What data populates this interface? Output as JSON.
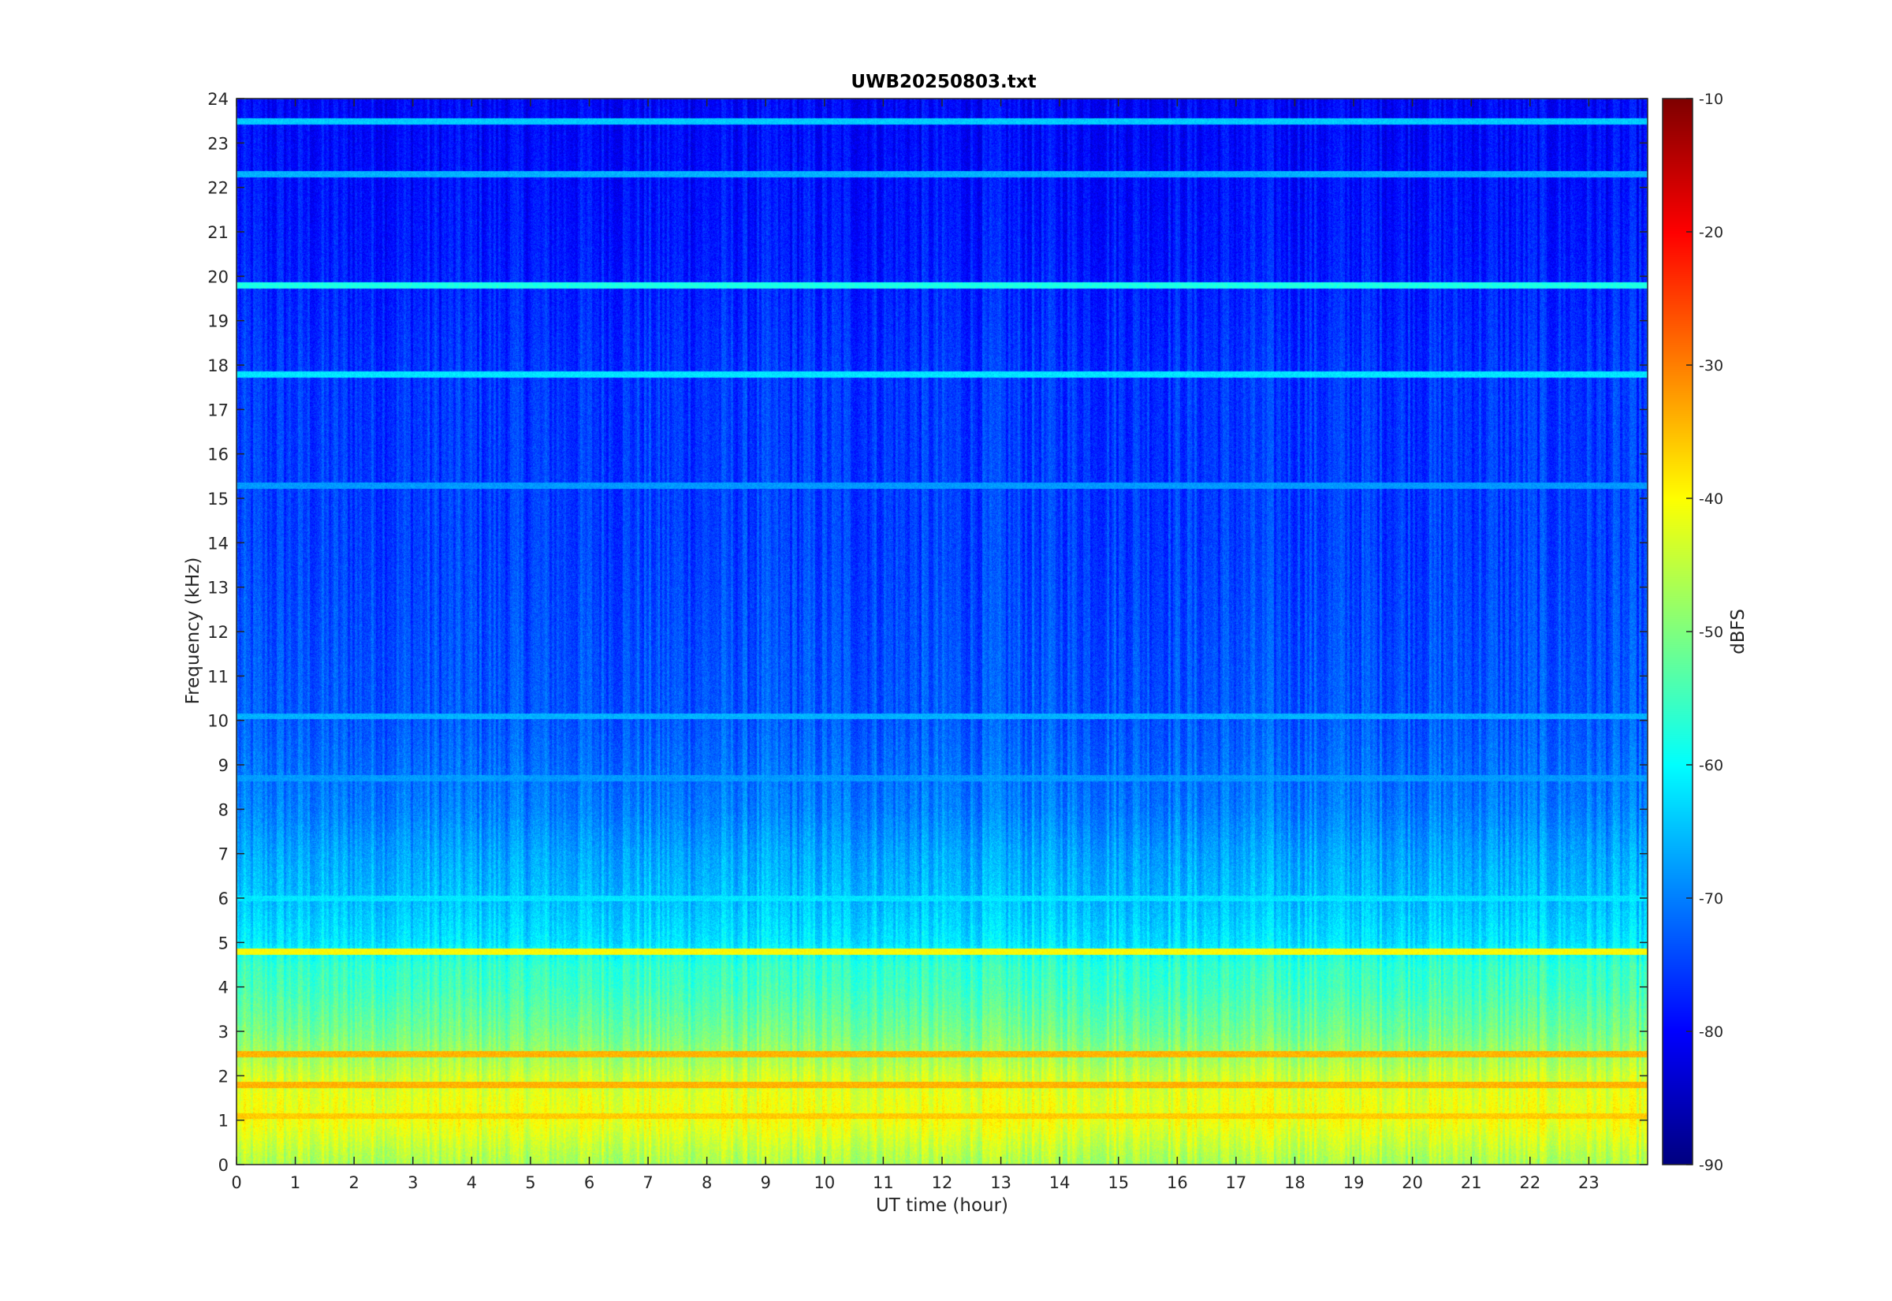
{
  "chart_data": {
    "type": "heatmap",
    "title": "UWB20250803.txt",
    "xlabel": "UT time (hour)",
    "ylabel": "Frequency (kHz)",
    "xlim": [
      0,
      24
    ],
    "ylim": [
      0,
      24
    ],
    "x_ticks": [
      "0",
      "1",
      "2",
      "3",
      "4",
      "5",
      "6",
      "7",
      "8",
      "9",
      "10",
      "11",
      "12",
      "13",
      "14",
      "15",
      "16",
      "17",
      "18",
      "19",
      "20",
      "21",
      "22",
      "23"
    ],
    "y_ticks": [
      "0",
      "1",
      "2",
      "3",
      "4",
      "5",
      "6",
      "7",
      "8",
      "9",
      "10",
      "11",
      "12",
      "13",
      "14",
      "15",
      "16",
      "17",
      "18",
      "19",
      "20",
      "21",
      "22",
      "23",
      "24"
    ],
    "colorbar": {
      "label": "dBFS",
      "limits": [
        -90,
        -10
      ],
      "ticks": [
        "-10",
        "-20",
        "-30",
        "-40",
        "-50",
        "-60",
        "-70",
        "-80",
        "-90"
      ],
      "colormap": "jet"
    },
    "frequency_profile_dBFS": [
      {
        "f": 0.0,
        "level": -47
      },
      {
        "f": 0.5,
        "level": -44
      },
      {
        "f": 1.0,
        "level": -41
      },
      {
        "f": 1.5,
        "level": -42
      },
      {
        "f": 2.0,
        "level": -44
      },
      {
        "f": 2.5,
        "level": -48
      },
      {
        "f": 3.0,
        "level": -51
      },
      {
        "f": 3.5,
        "level": -53
      },
      {
        "f": 4.0,
        "level": -55
      },
      {
        "f": 4.5,
        "level": -56
      },
      {
        "f": 5.0,
        "level": -62
      },
      {
        "f": 6.0,
        "level": -65
      },
      {
        "f": 7.0,
        "level": -67
      },
      {
        "f": 8.0,
        "level": -70
      },
      {
        "f": 10.0,
        "level": -73
      },
      {
        "f": 14.0,
        "level": -75
      },
      {
        "f": 18.0,
        "level": -76
      },
      {
        "f": 20.5,
        "level": -78
      },
      {
        "f": 24.0,
        "level": -80
      }
    ],
    "constant_lines_kHz": [
      {
        "f": 19.8,
        "level": -58
      },
      {
        "f": 17.8,
        "level": -62
      },
      {
        "f": 23.5,
        "level": -64
      },
      {
        "f": 22.3,
        "level": -66
      },
      {
        "f": 15.3,
        "level": -68
      },
      {
        "f": 10.1,
        "level": -66
      },
      {
        "f": 8.7,
        "level": -68
      },
      {
        "f": 6.0,
        "level": -62
      },
      {
        "f": 4.8,
        "level": -40
      },
      {
        "f": 2.5,
        "level": -34
      },
      {
        "f": 1.8,
        "level": -34
      },
      {
        "f": 1.1,
        "level": -36
      }
    ]
  }
}
